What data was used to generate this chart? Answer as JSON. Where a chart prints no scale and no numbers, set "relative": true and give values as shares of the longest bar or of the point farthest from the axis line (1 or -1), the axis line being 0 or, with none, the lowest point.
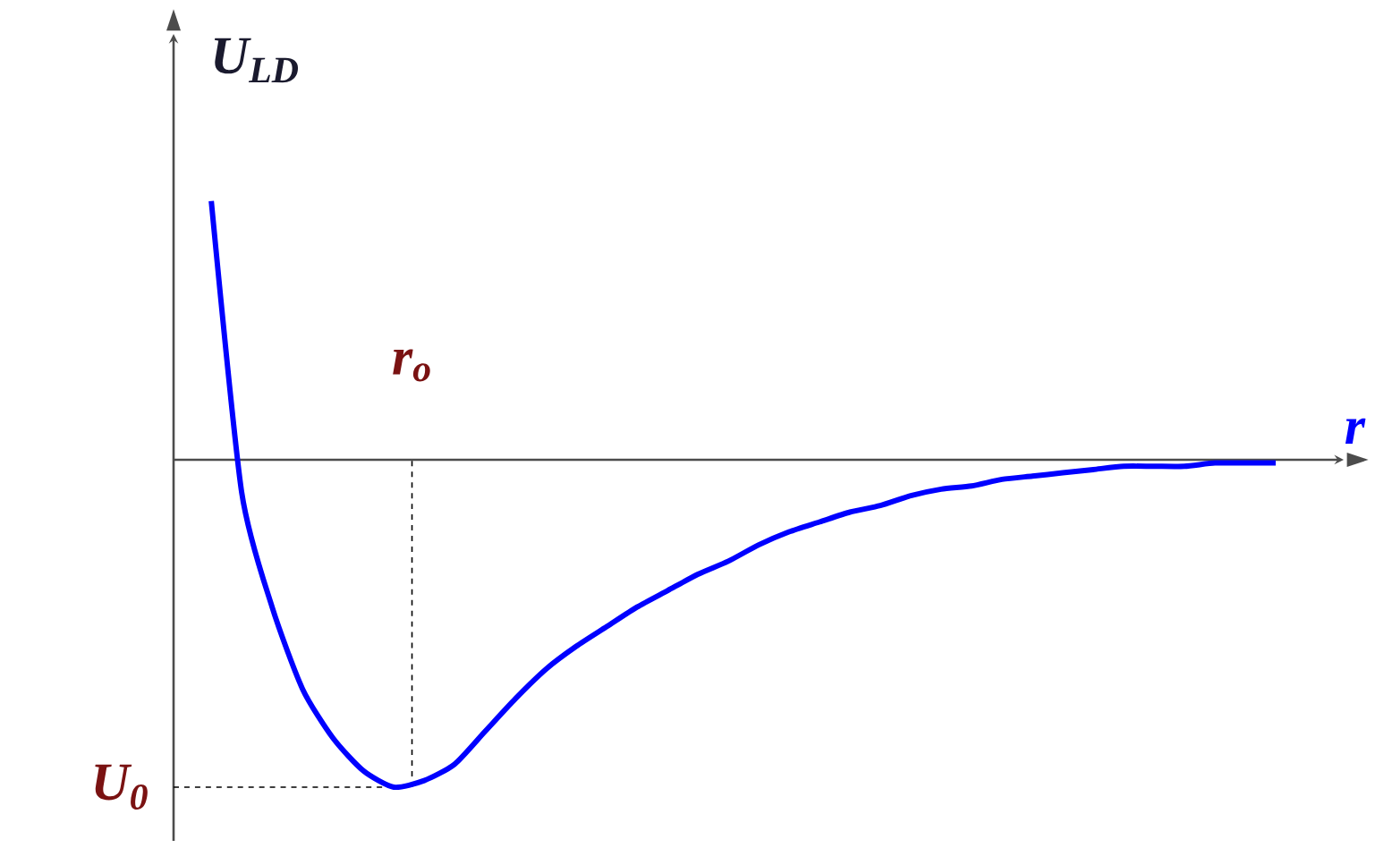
{
  "chart_data": {
    "type": "line",
    "relative": true,
    "xlabel": "r",
    "ylabel": "U$_{LD}$",
    "color": "#0000ff",
    "categories": [
      null,
      null,
      null,
      null,
      null,
      null,
      null,
      null,
      null,
      null,
      null,
      null,
      null,
      null,
      null,
      null,
      null,
      null,
      null,
      null,
      null,
      null,
      null,
      null,
      null,
      null,
      null,
      null,
      null,
      null,
      null,
      null,
      null,
      null,
      null,
      null
    ],
    "values": [
      0.79,
      -0.1,
      -0.45,
      -0.7,
      -0.85,
      -0.95,
      -1.0,
      -0.98,
      -0.93,
      -0.83,
      -0.73,
      -0.64,
      -0.57,
      -0.51,
      -0.45,
      -0.4,
      -0.35,
      -0.31,
      -0.26,
      -0.22,
      -0.19,
      -0.16,
      -0.14,
      -0.11,
      -0.09,
      -0.08,
      -0.06,
      -0.05,
      -0.04,
      -0.03,
      -0.02,
      -0.02,
      -0.02,
      -0.01,
      -0.01,
      -0.01
    ],
    "annotations": [
      "r$_{o}$"
    ],
    "ref_lines": [
      {
        "axis": "y",
        "value": -1,
        "label": "U$_{0}$",
        "line_style": "dashed"
      }
    ]
  }
}
